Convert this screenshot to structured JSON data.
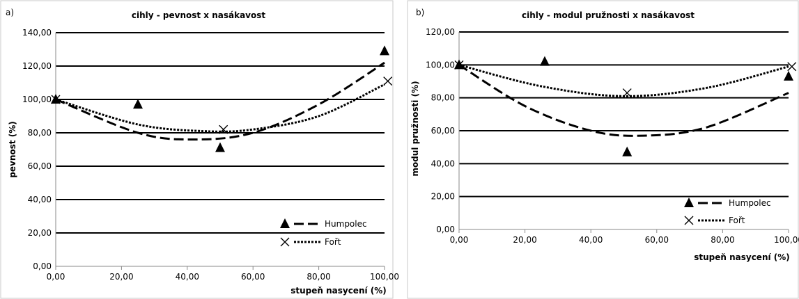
{
  "chart_data": [
    {
      "type": "scatter",
      "panel_label": "a)",
      "title": "cihly - pevnost x nasákavost",
      "xlabel": "stupeň nasycení (%)",
      "ylabel": "pevnost (%)",
      "xlim": [
        0,
        100
      ],
      "ylim": [
        0,
        140
      ],
      "xticks": [
        "0,00",
        "20,00",
        "40,00",
        "60,00",
        "80,00",
        "100,00"
      ],
      "yticks": [
        "0,00",
        "20,00",
        "40,00",
        "60,00",
        "80,00",
        "100,00",
        "120,00",
        "140,00"
      ],
      "grid": "horizontal",
      "legend_position": "bottom-right",
      "series": [
        {
          "name": "Humpolec",
          "marker": "triangle",
          "line": "dashed",
          "points": [
            {
              "x": 0,
              "y": 100
            },
            {
              "x": 25,
              "y": 97
            },
            {
              "x": 50,
              "y": 71
            },
            {
              "x": 100,
              "y": 129
            }
          ],
          "trend": [
            {
              "x": 0,
              "y": 100
            },
            {
              "x": 25,
              "y": 80
            },
            {
              "x": 42,
              "y": 76
            },
            {
              "x": 60,
              "y": 80
            },
            {
              "x": 80,
              "y": 97
            },
            {
              "x": 100,
              "y": 122
            }
          ]
        },
        {
          "name": "Fořt",
          "marker": "cross",
          "line": "dotted",
          "points": [
            {
              "x": 0,
              "y": 100
            },
            {
              "x": 51,
              "y": 82
            },
            {
              "x": 101,
              "y": 111
            }
          ],
          "trend": [
            {
              "x": 0,
              "y": 100
            },
            {
              "x": 25,
              "y": 85
            },
            {
              "x": 45,
              "y": 81
            },
            {
              "x": 60,
              "y": 82
            },
            {
              "x": 80,
              "y": 90
            },
            {
              "x": 100,
              "y": 109
            }
          ]
        }
      ]
    },
    {
      "type": "scatter",
      "panel_label": "b)",
      "title": "cihly - modul pružnosti x nasákavost",
      "xlabel": "stupeň nasycení (%)",
      "ylabel": "modul pružnosti (%)",
      "xlim": [
        0,
        100
      ],
      "ylim": [
        0,
        120
      ],
      "xticks": [
        "0,00",
        "20,00",
        "40,00",
        "60,00",
        "80,00",
        "100,00"
      ],
      "yticks": [
        "0,00",
        "20,00",
        "40,00",
        "60,00",
        "80,00",
        "100,00",
        "120,00"
      ],
      "grid": "horizontal",
      "legend_position": "bottom-right",
      "series": [
        {
          "name": "Humpolec",
          "marker": "triangle",
          "line": "dashed",
          "points": [
            {
              "x": 0,
              "y": 100
            },
            {
              "x": 26,
              "y": 102
            },
            {
              "x": 51,
              "y": 47
            },
            {
              "x": 100,
              "y": 93
            }
          ],
          "trend": [
            {
              "x": 0,
              "y": 100
            },
            {
              "x": 20,
              "y": 75
            },
            {
              "x": 40,
              "y": 60
            },
            {
              "x": 56,
              "y": 57
            },
            {
              "x": 75,
              "y": 62
            },
            {
              "x": 100,
              "y": 83
            }
          ]
        },
        {
          "name": "Fořt",
          "marker": "cross",
          "line": "dotted",
          "points": [
            {
              "x": 0,
              "y": 100
            },
            {
              "x": 51,
              "y": 83
            },
            {
              "x": 101,
              "y": 99
            }
          ],
          "trend": [
            {
              "x": 0,
              "y": 100
            },
            {
              "x": 25,
              "y": 87
            },
            {
              "x": 50,
              "y": 81
            },
            {
              "x": 75,
              "y": 86
            },
            {
              "x": 100,
              "y": 99
            }
          ]
        }
      ]
    }
  ]
}
